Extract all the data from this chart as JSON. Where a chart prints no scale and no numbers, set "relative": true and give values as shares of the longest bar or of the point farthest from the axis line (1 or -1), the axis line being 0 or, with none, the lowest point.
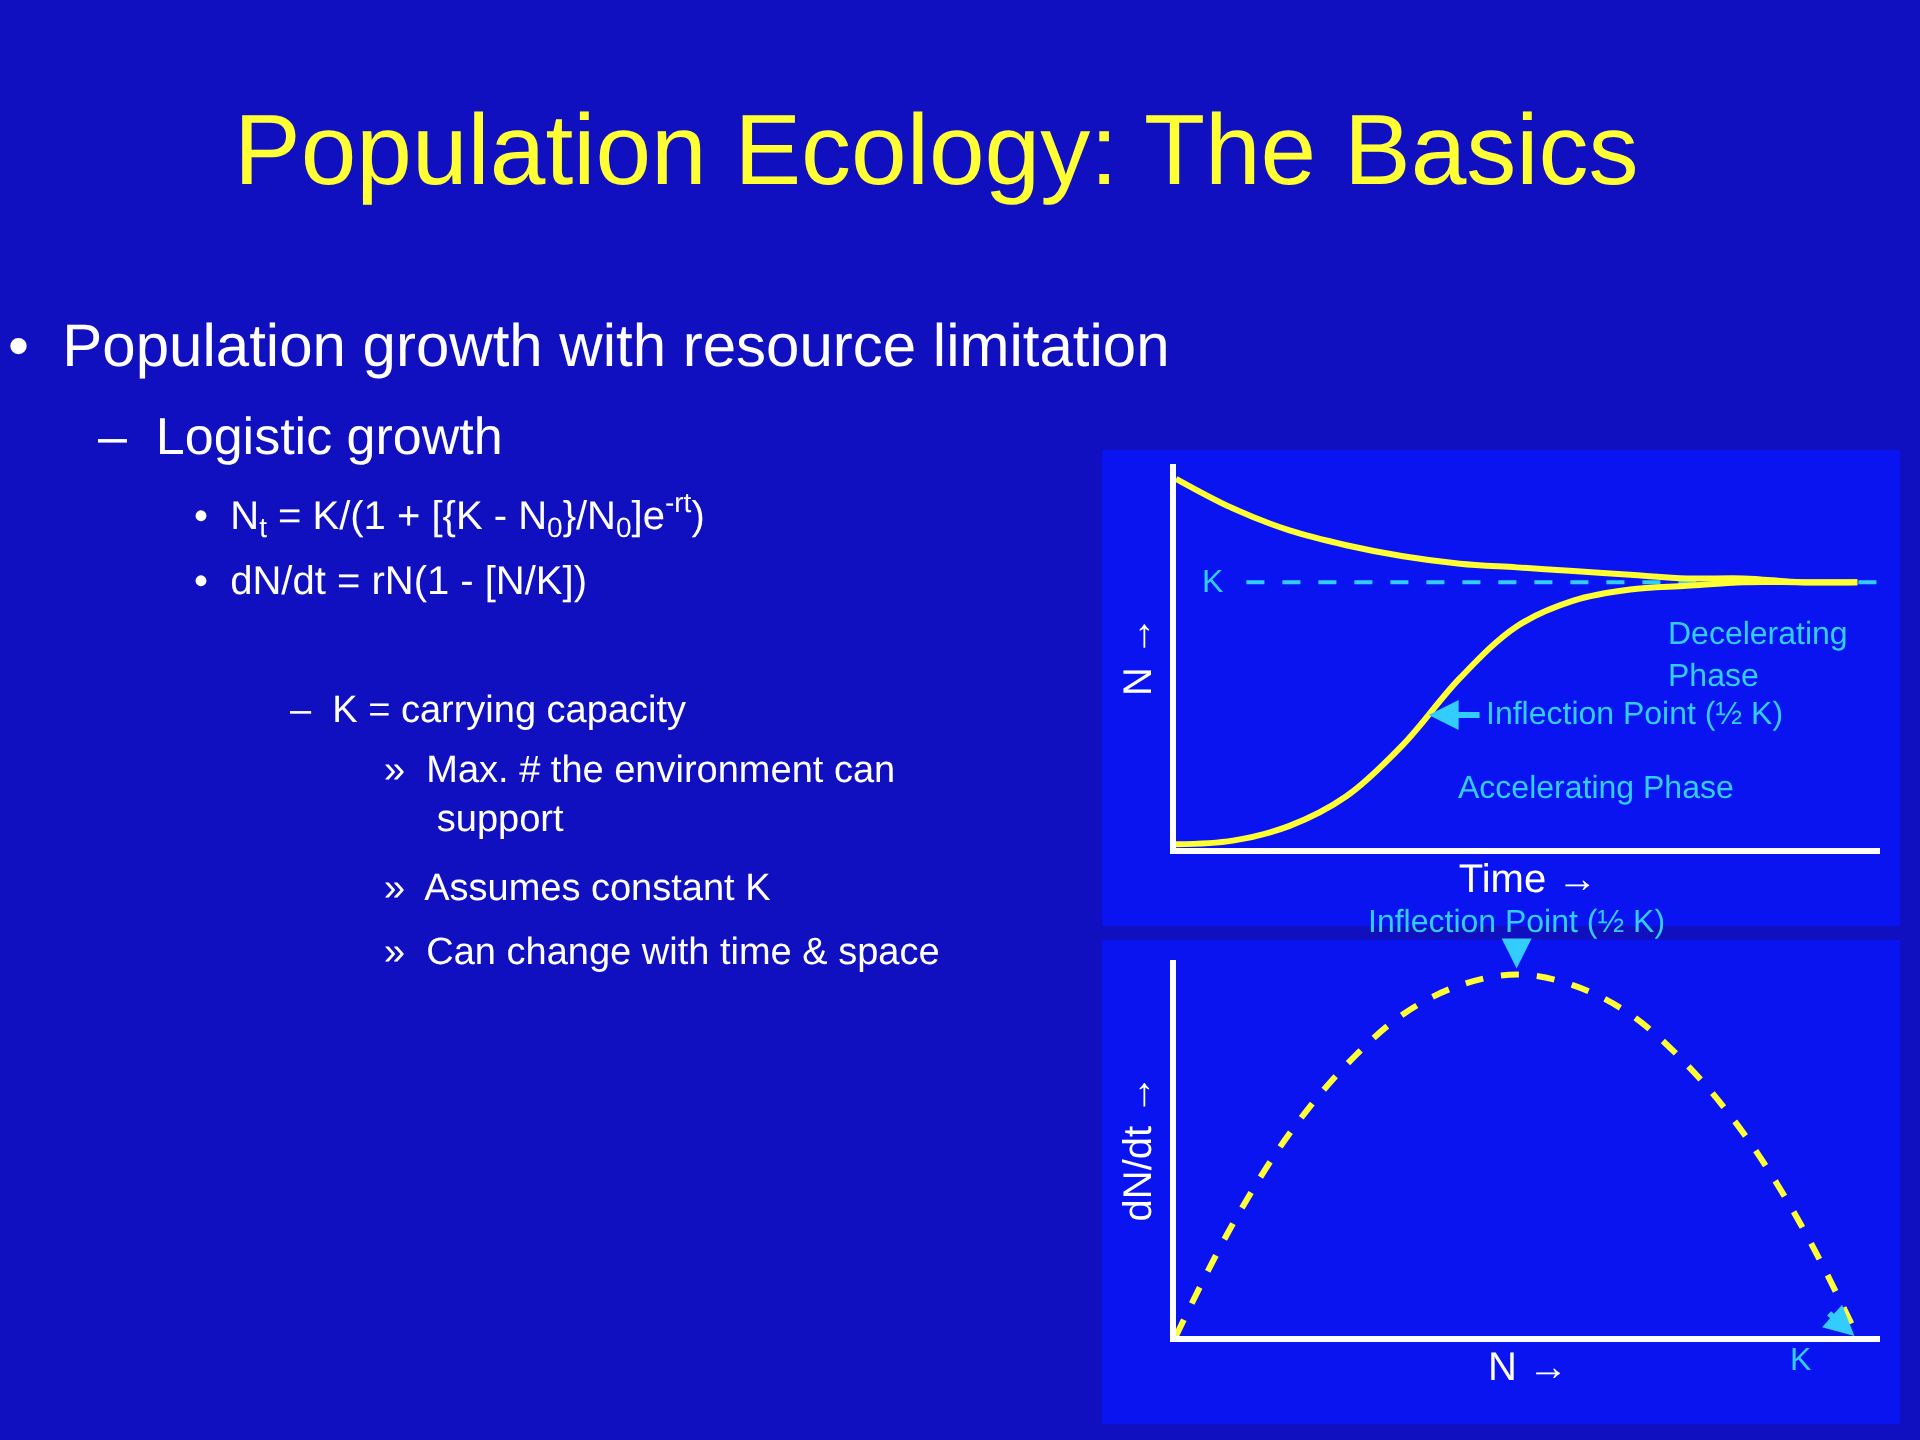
{
  "chart_data": [
    {
      "type": "other",
      "title": "Population Ecology: The Basics",
      "annotations": [
        "•  Population growth with resource limitation",
        "–  Logistic growth",
        "•  N$_{t}$ = K/(1 + [{K - N$_{0}$}/N$_{0}$]e$^{-rt}$)",
        "•  dN/dt = rN(1 - [N/K])",
        "–  K = carrying capacity",
        "»  Max. # the environment can\nsupport",
        "»  Assumes constant K",
        "»  Can change with time & space"
      ]
    },
    {
      "type": "line",
      "relative": true,
      "categories": [
        null,
        null,
        null,
        null,
        null,
        null,
        null,
        null,
        null,
        null,
        null,
        null,
        null
      ],
      "xlabel": "Time →",
      "ylabel": "N →",
      "marker": "none",
      "line_style": "solid",
      "grid": false,
      "series": [
        {
          "color": "#ffff33",
          "values": [
            1.0,
            0.92,
            0.86,
            0.82,
            0.79,
            0.77,
            0.76,
            0.75,
            0.74,
            0.73,
            0.73,
            0.72,
            0.72
          ]
        },
        {
          "color": "#ffff33",
          "values": [
            0.01,
            0.02,
            0.06,
            0.14,
            0.28,
            0.46,
            0.6,
            0.67,
            0.7,
            0.71,
            0.72,
            0.72,
            0.72
          ]
        }
      ],
      "ref_lines": [
        {
          "axis": "y",
          "value": 0.72,
          "label": "K",
          "color": "#33ccff",
          "line_style": "dashed"
        }
      ],
      "annotations": [
        "Decelerating\nPhase",
        "Inflection Point (½ K)",
        "Accelerating Phase"
      ]
    },
    {
      "type": "line",
      "relative": true,
      "categories": [
        null,
        null,
        null,
        null,
        null,
        null,
        null,
        null,
        null,
        null,
        null,
        null,
        null
      ],
      "xlabel": "N →",
      "ylabel": "dN/dt →",
      "marker": "none",
      "line_style": "dashed",
      "grid": false,
      "series": [
        {
          "color": "#ffff33",
          "values": [
            0,
            0.31,
            0.56,
            0.75,
            0.89,
            0.97,
            1,
            0.97,
            0.89,
            0.75,
            0.56,
            0.31,
            0
          ]
        }
      ],
      "annotations": [
        "Inflection Point (½ K)",
        "K"
      ]
    }
  ]
}
